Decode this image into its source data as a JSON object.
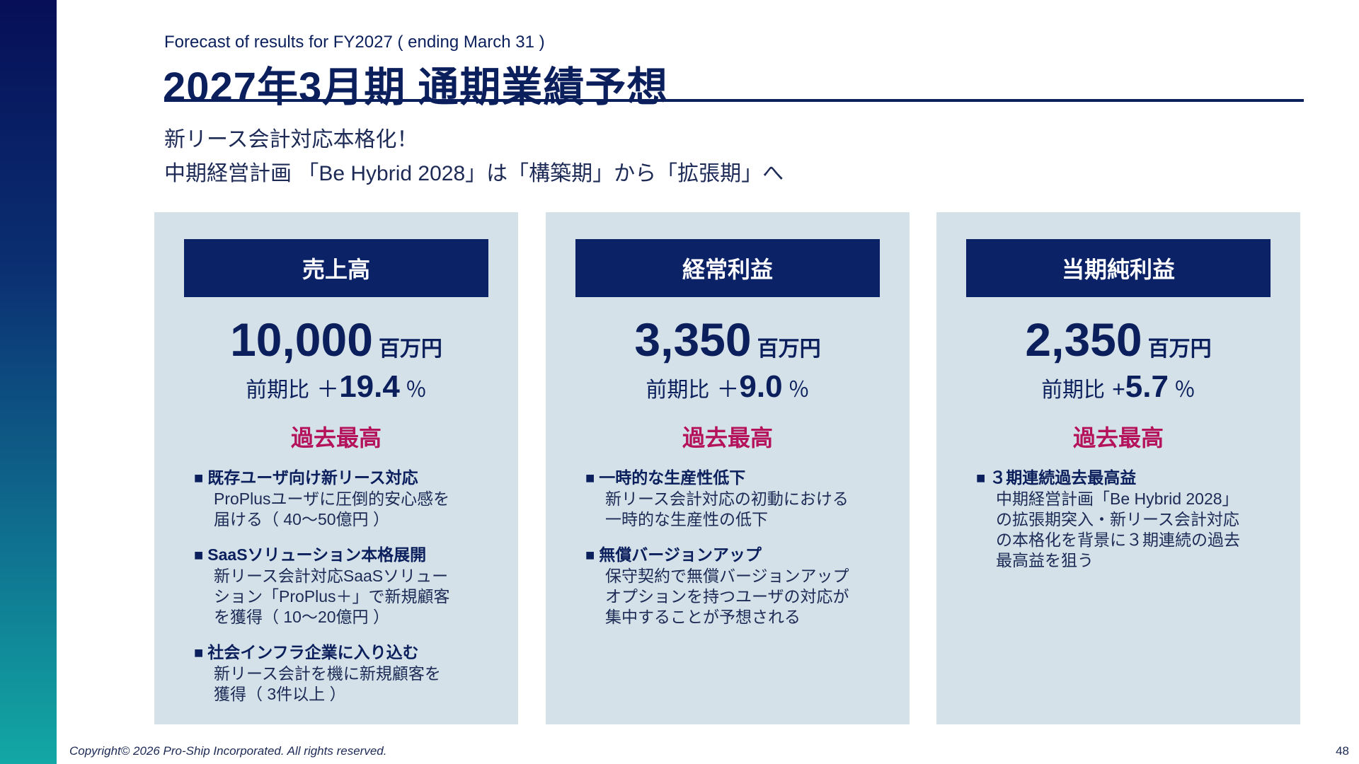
{
  "header": {
    "subtitle_en": "Forecast of results for FY2027 ( ending March 31 )",
    "title_ja": "2027年3月期 通期業績予想"
  },
  "lead": {
    "line1": "新リース会計対応本格化！",
    "line2": "中期経営計画 「Be Hybrid 2028」は「構築期」から「拡張期」へ"
  },
  "cards": [
    {
      "header": "売上高",
      "amount": "10,000",
      "unit": "百万円",
      "yoy_label": "前期比",
      "yoy_sign": "＋",
      "yoy_value": "19.4",
      "yoy_pct": "％",
      "record": "過去最高",
      "bullets": [
        {
          "marker": "■",
          "head": "既存ユーザ向け新リース対応",
          "body": "ProPlusユーザに圧倒的安心感を\n届ける（ 40〜50億円 ）"
        },
        {
          "marker": "■",
          "head": "SaaSソリューション本格展開",
          "body": "新リース会計対応SaaSソリュー\nション「ProPlus＋」で新規顧客\nを獲得（ 10〜20億円 ）"
        },
        {
          "marker": "■",
          "head": "社会インフラ企業に入り込む",
          "body": "新リース会計を機に新規顧客を\n獲得（ 3件以上 ）"
        }
      ]
    },
    {
      "header": "経常利益",
      "amount": "3,350",
      "unit": "百万円",
      "yoy_label": "前期比",
      "yoy_sign": "＋",
      "yoy_value": "9.0",
      "yoy_pct": "％",
      "record": "過去最高",
      "bullets": [
        {
          "marker": "■",
          "head": "一時的な生産性低下",
          "body": "新リース会計対応の初動における\n一時的な生産性の低下"
        },
        {
          "marker": "■",
          "head": "無償バージョンアップ",
          "body": "保守契約で無償バージョンアップ\nオプションを持つユーザの対応が\n集中することが予想される"
        }
      ]
    },
    {
      "header": "当期純利益",
      "amount": "2,350",
      "unit": "百万円",
      "yoy_label": "前期比",
      "yoy_sign": "+",
      "yoy_value": "5.7",
      "yoy_pct": "％",
      "record": "過去最高",
      "bullets": [
        {
          "marker": "■",
          "head": "３期連続過去最高益",
          "body": "中期経営計画「Be Hybrid 2028」\nの拡張期突入・新リース会計対応\nの本格化を背景に３期連続の過去\n最高益を狙う"
        }
      ]
    }
  ],
  "footer": {
    "copyright": "Copyright© 2026 Pro-Ship Incorporated. All rights reserved.",
    "page_number": "48"
  }
}
